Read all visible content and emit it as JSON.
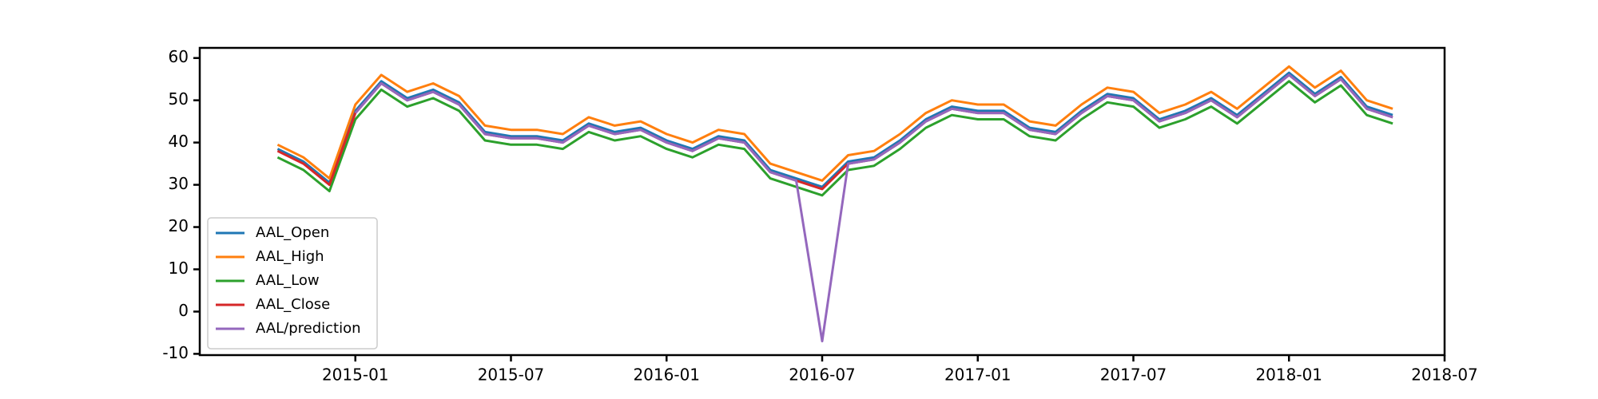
{
  "chart_data": {
    "type": "line",
    "x": [
      "2014-10",
      "2014-11",
      "2014-12",
      "2015-01",
      "2015-02",
      "2015-03",
      "2015-04",
      "2015-05",
      "2015-06",
      "2015-07",
      "2015-08",
      "2015-09",
      "2015-10",
      "2015-11",
      "2015-12",
      "2016-01",
      "2016-02",
      "2016-03",
      "2016-04",
      "2016-05",
      "2016-06",
      "2016-07",
      "2016-08",
      "2016-09",
      "2016-10",
      "2016-11",
      "2016-12",
      "2017-01",
      "2017-02",
      "2017-03",
      "2017-04",
      "2017-05",
      "2017-06",
      "2017-07",
      "2017-08",
      "2017-09",
      "2017-10",
      "2017-11",
      "2017-12",
      "2018-01",
      "2018-02",
      "2018-03",
      "2018-04",
      "2018-05"
    ],
    "series": [
      {
        "name": "AAL_Open",
        "color": "#1f77b4",
        "values": [
          38.5,
          35.5,
          30.5,
          47.5,
          54.5,
          50.5,
          52.5,
          49.5,
          42.5,
          41.5,
          41.5,
          40.5,
          44.5,
          42.5,
          43.5,
          40.5,
          38.5,
          41.5,
          40.5,
          33.5,
          31.5,
          29.5,
          35.5,
          36.5,
          40.5,
          45.5,
          48.5,
          47.5,
          47.5,
          43.5,
          42.5,
          47.5,
          51.5,
          50.5,
          45.5,
          47.5,
          50.5,
          46.5,
          51.5,
          56.5,
          51.5,
          55.5,
          48.5,
          46.5
        ]
      },
      {
        "name": "AAL_High",
        "color": "#ff7f0e",
        "values": [
          39.5,
          36.5,
          31.5,
          49,
          56,
          52,
          54,
          51,
          44,
          43,
          43,
          42,
          46,
          44,
          45,
          42,
          40,
          43,
          42,
          35,
          33,
          31,
          37,
          38,
          42,
          47,
          50,
          49,
          49,
          45,
          44,
          49,
          53,
          52,
          47,
          49,
          52,
          48,
          53,
          58,
          53,
          57,
          50,
          48
        ]
      },
      {
        "name": "AAL_Low",
        "color": "#2ca02c",
        "values": [
          36.5,
          33.5,
          28.5,
          45.5,
          52.5,
          48.5,
          50.5,
          47.5,
          40.5,
          39.5,
          39.5,
          38.5,
          42.5,
          40.5,
          41.5,
          38.5,
          36.5,
          39.5,
          38.5,
          31.5,
          29.5,
          27.5,
          33.5,
          34.5,
          38.5,
          43.5,
          46.5,
          45.5,
          45.5,
          41.5,
          40.5,
          45.5,
          49.5,
          48.5,
          43.5,
          45.5,
          48.5,
          44.5,
          49.5,
          54.5,
          49.5,
          53.5,
          46.5,
          44.5
        ]
      },
      {
        "name": "AAL_Close",
        "color": "#d62728",
        "values": [
          38,
          35,
          30,
          47,
          54,
          50,
          52,
          49,
          42,
          41,
          41,
          40,
          44,
          42,
          43,
          40,
          38,
          41,
          40,
          33,
          31,
          29,
          35,
          36,
          40,
          45,
          48,
          47,
          47,
          43,
          42,
          47,
          51,
          50,
          45,
          47,
          50,
          46,
          51,
          56,
          51,
          55,
          48,
          46
        ]
      },
      {
        "name": "AAL/prediction",
        "color": "#9467bd",
        "values": [
          null,
          null,
          null,
          47,
          54,
          50,
          52,
          49,
          42,
          41,
          41,
          40,
          44,
          42,
          43,
          40,
          38,
          41,
          40,
          33,
          31,
          -7,
          35,
          36,
          40,
          45,
          48,
          47,
          47,
          43,
          42,
          47,
          51,
          50,
          45,
          47,
          50,
          46,
          51,
          56,
          51,
          55,
          48,
          46
        ]
      }
    ],
    "xlim": [
      "2014-07",
      "2018-07"
    ],
    "xticks": [
      "2015-01",
      "2015-07",
      "2016-01",
      "2016-07",
      "2017-01",
      "2017-07",
      "2018-01",
      "2018-07"
    ],
    "ylim": [
      -10.3,
      62.4
    ],
    "yticks": [
      -10,
      0,
      10,
      20,
      30,
      40,
      50,
      60
    ],
    "legend": "lower left"
  }
}
